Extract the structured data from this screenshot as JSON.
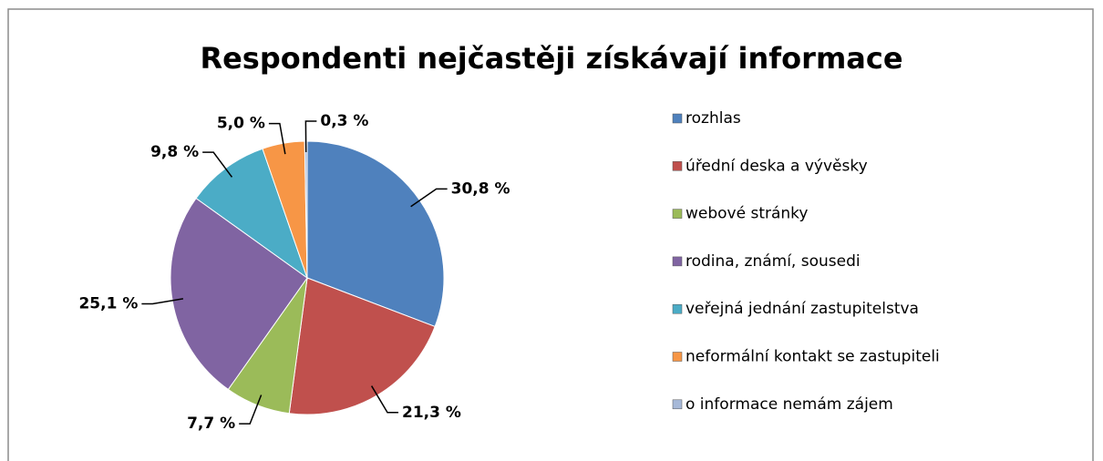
{
  "chart_data": {
    "type": "pie",
    "title": "Respondenti nejčastěji získávají informace",
    "categories": [
      "rozhlas",
      "úřední deska a vývěsky",
      "webové stránky",
      "rodina, známí, sousedi",
      "veřejná jednání zastupitelstva",
      "neformální kontakt se zastupiteli",
      "o informace nemám zájem"
    ],
    "values": [
      30.8,
      21.3,
      7.7,
      25.1,
      9.8,
      5.0,
      0.3
    ],
    "value_labels": [
      "30,8 %",
      "21,3 %",
      "7,7 %",
      "25,1 %",
      "9,8 %",
      "5,0 %",
      "0,3 %"
    ],
    "colors": [
      "#4f81bd",
      "#c0504d",
      "#9bbb59",
      "#8064a2",
      "#4bacc6",
      "#f79646",
      "#a7b9d8"
    ],
    "legend": "right"
  }
}
